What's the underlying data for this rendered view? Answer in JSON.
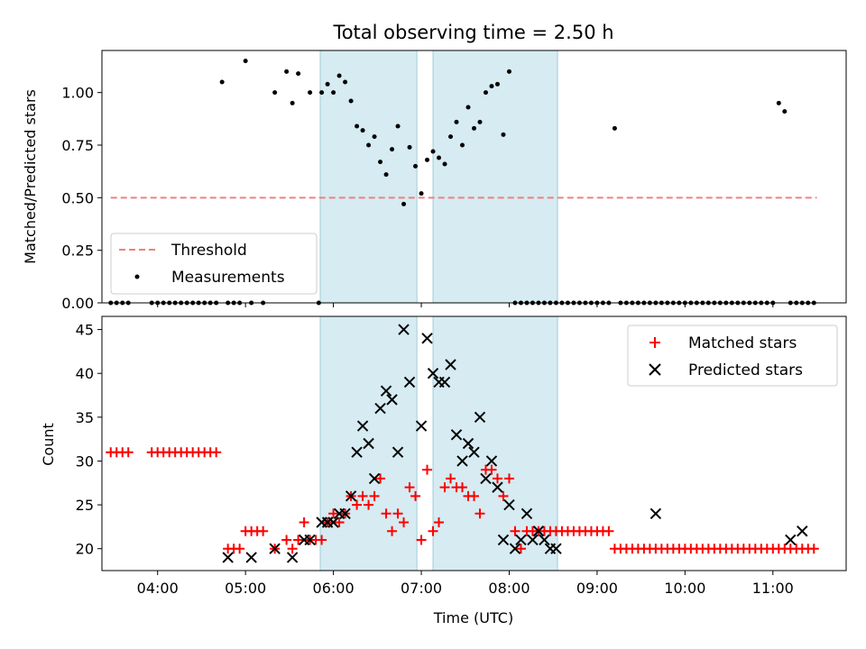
{
  "chart_data": [
    {
      "type": "scatter",
      "title": "Total observing time = 2.50 h",
      "xlabel": "",
      "ylabel": "Matched/Predicted stars",
      "xlim": [
        "03:22",
        "11:50"
      ],
      "ylim": [
        0,
        1.2
      ],
      "yticks": [
        "0.00",
        "0.25",
        "0.50",
        "0.75",
        "1.00"
      ],
      "grid": false,
      "legend": "lower-left",
      "shaded_intervals": [
        [
          "05:51",
          "06:57"
        ],
        [
          "07:08",
          "08:33"
        ]
      ],
      "threshold": {
        "name": "Threshold",
        "value": 0.5,
        "x": [
          "03:28",
          "11:30"
        ],
        "color": "#f08080",
        "style": "dashed"
      },
      "series": [
        {
          "name": "Measurements",
          "color": "#000000",
          "marker": "dot",
          "x": [
            "03:28",
            "03:32",
            "03:36",
            "03:40",
            "03:56",
            "04:00",
            "04:04",
            "04:08",
            "04:12",
            "04:16",
            "04:20",
            "04:24",
            "04:28",
            "04:32",
            "04:36",
            "04:40",
            "04:44",
            "04:48",
            "04:52",
            "04:56",
            "05:00",
            "05:04",
            "05:12",
            "05:20",
            "05:28",
            "05:32",
            "05:36",
            "05:44",
            "05:50",
            "05:52",
            "05:56",
            "06:00",
            "06:04",
            "06:08",
            "06:12",
            "06:16",
            "06:20",
            "06:24",
            "06:28",
            "06:32",
            "06:36",
            "06:40",
            "06:44",
            "06:48",
            "06:52",
            "06:56",
            "07:00",
            "07:04",
            "07:08",
            "07:12",
            "07:16",
            "07:20",
            "07:24",
            "07:28",
            "07:32",
            "07:36",
            "07:40",
            "07:44",
            "07:48",
            "07:52",
            "07:56",
            "08:00",
            "08:04",
            "08:08",
            "08:12",
            "08:16",
            "08:20",
            "08:24",
            "08:28",
            "08:32",
            "08:36",
            "08:40",
            "08:44",
            "08:48",
            "08:52",
            "08:56",
            "09:00",
            "09:04",
            "09:08",
            "09:12",
            "09:16",
            "09:20",
            "09:24",
            "09:28",
            "09:32",
            "09:36",
            "09:40",
            "09:44",
            "09:48",
            "09:52",
            "09:56",
            "10:00",
            "10:04",
            "10:08",
            "10:12",
            "10:16",
            "10:20",
            "10:24",
            "10:28",
            "10:32",
            "10:36",
            "10:40",
            "10:44",
            "10:48",
            "10:52",
            "10:56",
            "11:00",
            "11:04",
            "11:08",
            "11:12",
            "11:16",
            "11:20",
            "11:24",
            "11:28"
          ],
          "y": [
            0,
            0,
            0,
            0,
            0,
            0,
            0,
            0,
            0,
            0,
            0,
            0,
            0,
            0,
            0,
            0,
            1.05,
            0,
            0,
            0,
            1.15,
            0,
            0,
            1.0,
            1.1,
            0.95,
            1.09,
            1.0,
            0,
            1.0,
            1.04,
            1.0,
            1.08,
            1.05,
            0.96,
            0.84,
            0.82,
            0.75,
            0.79,
            0.67,
            0.61,
            0.73,
            0.84,
            0.47,
            0.74,
            0.65,
            0.52,
            0.68,
            0.72,
            0.69,
            0.66,
            0.79,
            0.86,
            0.75,
            0.93,
            0.83,
            0.86,
            1.0,
            1.03,
            1.04,
            0.8,
            1.1,
            0,
            0,
            0,
            0,
            0,
            0,
            0,
            0,
            0,
            0,
            0,
            0,
            0,
            0,
            0,
            0,
            0,
            0.83,
            0,
            0,
            0,
            0,
            0,
            0,
            0,
            0,
            0,
            0,
            0,
            0,
            0,
            0,
            0,
            0,
            0,
            0,
            0,
            0,
            0,
            0,
            0,
            0,
            0,
            0,
            0,
            0.95,
            0.91,
            0,
            0,
            0,
            0,
            0
          ],
          "x_fix_note": ""
        }
      ]
    },
    {
      "type": "scatter",
      "title": "",
      "xlabel": "Time (UTC)",
      "ylabel": "Count",
      "xlim": [
        "03:22",
        "11:50"
      ],
      "ylim": [
        17.5,
        46.5
      ],
      "xticks": [
        "04:00",
        "05:00",
        "06:00",
        "07:00",
        "08:00",
        "09:00",
        "10:00",
        "11:00"
      ],
      "yticks": [
        "20",
        "25",
        "30",
        "35",
        "40",
        "45"
      ],
      "grid": false,
      "legend": "upper-right",
      "shaded_intervals": [
        [
          "05:51",
          "06:57"
        ],
        [
          "07:08",
          "08:33"
        ]
      ],
      "series": [
        {
          "name": "Matched stars",
          "color": "#ff0000",
          "marker": "plus",
          "x": [
            "03:28",
            "03:32",
            "03:36",
            "03:40",
            "03:56",
            "04:00",
            "04:04",
            "04:08",
            "04:12",
            "04:16",
            "04:20",
            "04:24",
            "04:28",
            "04:32",
            "04:36",
            "04:40",
            "04:48",
            "04:52",
            "04:56",
            "05:00",
            "05:04",
            "05:08",
            "05:12",
            "05:20",
            "05:28",
            "05:32",
            "05:36",
            "05:40",
            "05:44",
            "05:48",
            "05:52",
            "05:56",
            "06:00",
            "06:04",
            "06:08",
            "06:12",
            "06:16",
            "06:20",
            "06:24",
            "06:28",
            "06:32",
            "06:36",
            "06:40",
            "06:44",
            "06:48",
            "06:52",
            "06:56",
            "07:00",
            "07:04",
            "07:08",
            "07:12",
            "07:16",
            "07:20",
            "07:24",
            "07:28",
            "07:32",
            "07:36",
            "07:40",
            "07:44",
            "07:48",
            "07:52",
            "07:56",
            "08:00",
            "08:04",
            "08:08",
            "08:12",
            "08:16",
            "08:20",
            "08:24",
            "08:28",
            "08:32",
            "08:36",
            "08:40",
            "08:44",
            "08:48",
            "08:52",
            "08:56",
            "09:00",
            "09:04",
            "09:08",
            "09:12",
            "09:16",
            "09:20",
            "09:24",
            "09:28",
            "09:32",
            "09:36",
            "09:40",
            "09:44",
            "09:48",
            "09:52",
            "09:56",
            "10:00",
            "10:04",
            "10:08",
            "10:12",
            "10:16",
            "10:20",
            "10:24",
            "10:28",
            "10:32",
            "10:36",
            "10:40",
            "10:44",
            "10:48",
            "10:52",
            "10:56",
            "11:00",
            "11:04",
            "11:08",
            "11:12",
            "11:16",
            "11:20",
            "11:24",
            "11:28"
          ],
          "y": [
            31,
            31,
            31,
            31,
            31,
            31,
            31,
            31,
            31,
            31,
            31,
            31,
            31,
            31,
            31,
            31,
            20,
            20,
            20,
            22,
            22,
            22,
            22,
            20,
            21,
            20,
            21,
            23,
            21,
            21,
            21,
            23,
            24,
            23,
            24,
            26,
            25,
            26,
            25,
            26,
            28,
            24,
            22,
            24,
            23,
            27,
            26,
            21,
            29,
            22,
            23,
            27,
            28,
            27,
            27,
            26,
            26,
            24,
            29,
            29,
            28,
            26,
            28,
            22,
            20,
            22,
            22,
            22,
            22,
            22,
            22,
            22,
            22,
            22,
            22,
            22,
            22,
            22,
            22,
            22,
            20,
            20,
            20,
            20,
            20,
            20,
            20,
            20,
            20,
            20,
            20,
            20,
            20,
            20,
            20,
            20,
            20,
            20,
            20,
            20,
            20,
            20,
            20,
            20,
            20,
            20,
            20,
            20,
            20,
            20,
            20,
            20,
            20,
            20,
            20
          ]
        },
        {
          "name": "Predicted stars",
          "color": "#000000",
          "marker": "x",
          "x": [
            "04:48",
            "05:04",
            "05:20",
            "05:32",
            "05:40",
            "05:44",
            "05:52",
            "05:56",
            "06:00",
            "06:04",
            "06:08",
            "06:12",
            "06:16",
            "06:20",
            "06:24",
            "06:28",
            "06:32",
            "06:36",
            "06:40",
            "06:44",
            "06:48",
            "06:52",
            "07:00",
            "07:04",
            "07:08",
            "07:12",
            "07:16",
            "07:20",
            "07:24",
            "07:28",
            "07:32",
            "07:36",
            "07:40",
            "07:44",
            "07:48",
            "07:52",
            "07:56",
            "08:00",
            "08:04",
            "08:08",
            "08:12",
            "08:16",
            "08:20",
            "08:24",
            "08:28",
            "08:32",
            "09:40",
            "11:12",
            "11:20"
          ],
          "y": [
            19,
            19,
            20,
            19,
            21,
            21,
            23,
            23,
            23,
            24,
            24,
            26,
            31,
            34,
            32,
            28,
            36,
            38,
            37,
            31,
            45,
            39,
            34,
            44,
            40,
            39,
            39,
            41,
            33,
            30,
            32,
            31,
            35,
            28,
            30,
            27,
            21,
            25,
            20,
            21,
            24,
            21,
            22,
            21,
            20,
            20,
            24,
            21,
            22
          ]
        }
      ]
    }
  ]
}
